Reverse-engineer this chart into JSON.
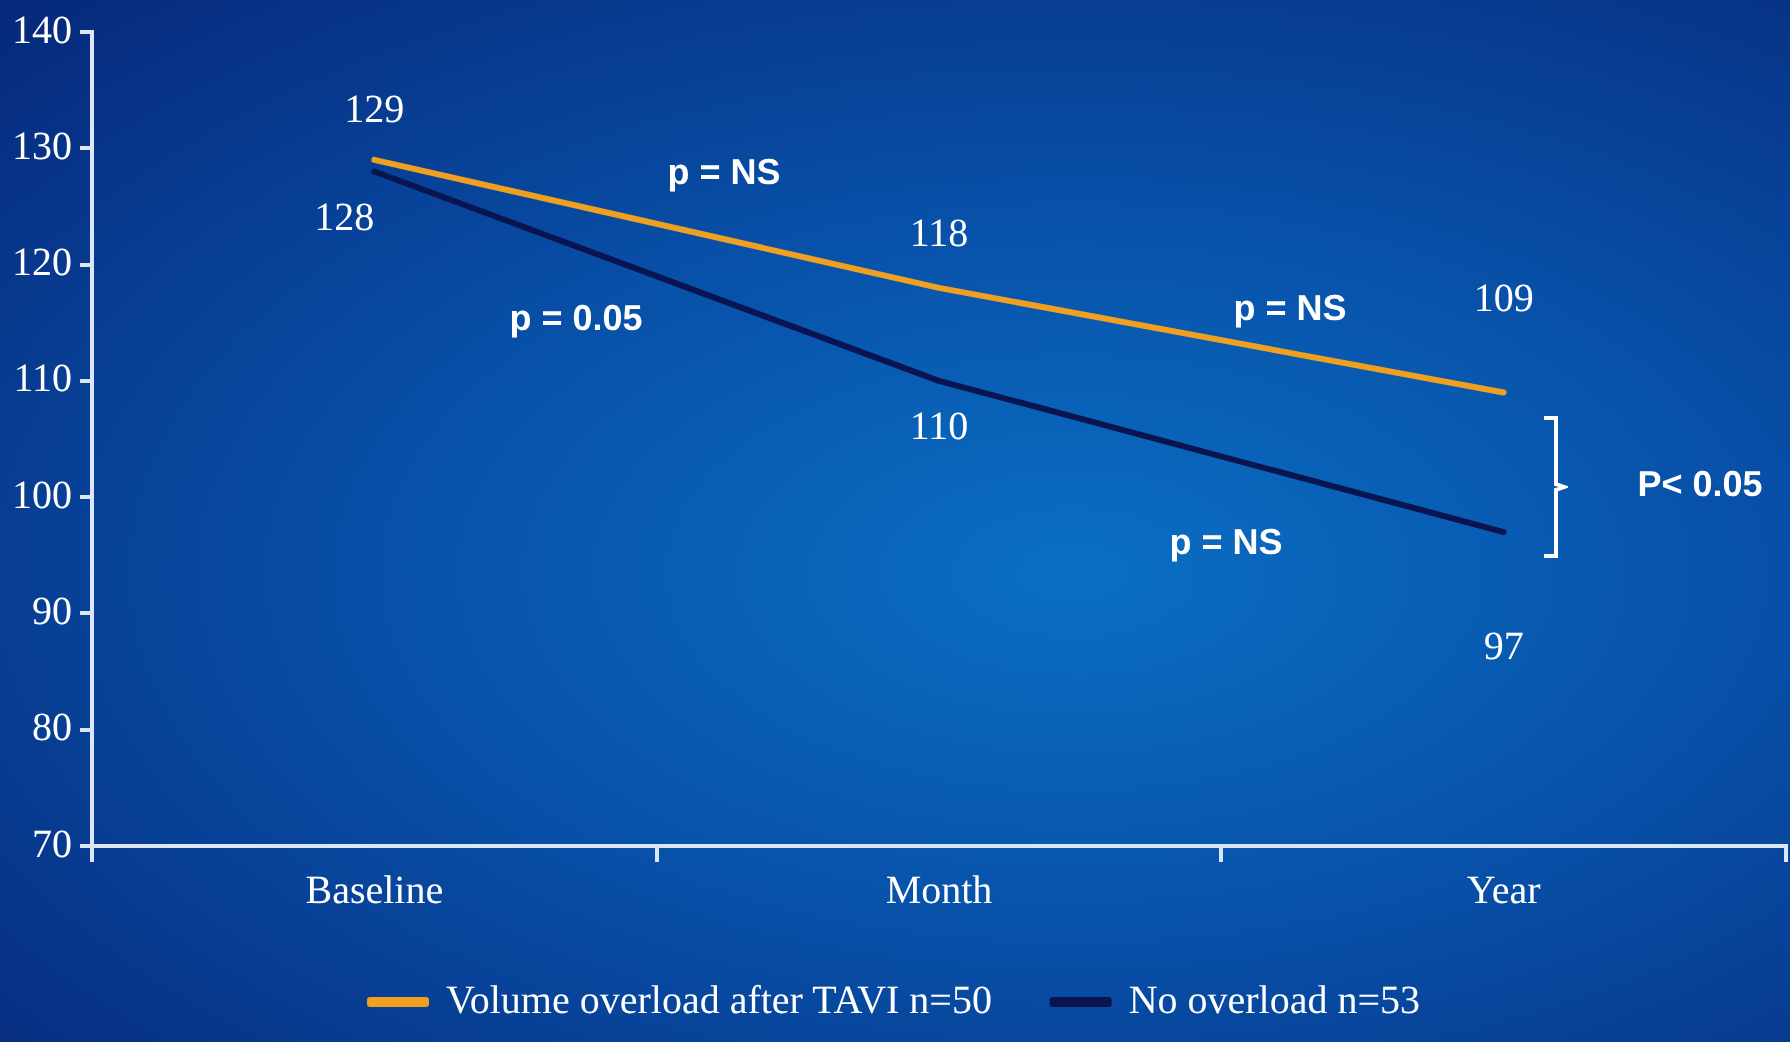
{
  "chart_data": {
    "type": "line",
    "categories": [
      "Baseline",
      "Month",
      "Year"
    ],
    "series": [
      {
        "name": "Volume overload after TAVI n=50",
        "color": "#f0a020",
        "values": [
          129,
          118,
          109
        ]
      },
      {
        "name": "No overload n=53",
        "color": "#0a1450",
        "values": [
          128,
          110,
          97
        ]
      }
    ],
    "ylim": [
      70,
      140
    ],
    "yticks": [
      70,
      80,
      90,
      100,
      110,
      120,
      130,
      140
    ],
    "grid": false,
    "legend": "bottom",
    "marker": "none",
    "line_style": "solid",
    "data_labels": true,
    "annotations": [
      "p = NS",
      "p = 0.05",
      "p = NS",
      "p = NS",
      "P< 0.05"
    ]
  }
}
